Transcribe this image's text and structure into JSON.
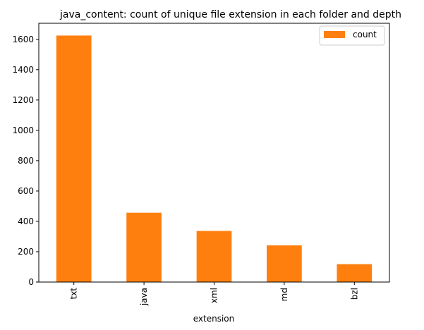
{
  "chart_data": {
    "type": "bar",
    "title": "java_content: count of unique file extension in each folder and depth",
    "xlabel": "extension",
    "ylabel": "",
    "categories": [
      "txt",
      "java",
      "xml",
      "md",
      "bzl"
    ],
    "series": [
      {
        "name": "count",
        "values": [
          1625,
          457,
          337,
          242,
          118
        ],
        "color": "#ff7f0e"
      }
    ],
    "yticks": [
      0,
      200,
      400,
      600,
      800,
      1000,
      1200,
      1400,
      1600
    ],
    "ylim": [
      0,
      1706
    ],
    "grid": false,
    "legend": {
      "position": "top-right",
      "entries": [
        "count"
      ]
    }
  }
}
